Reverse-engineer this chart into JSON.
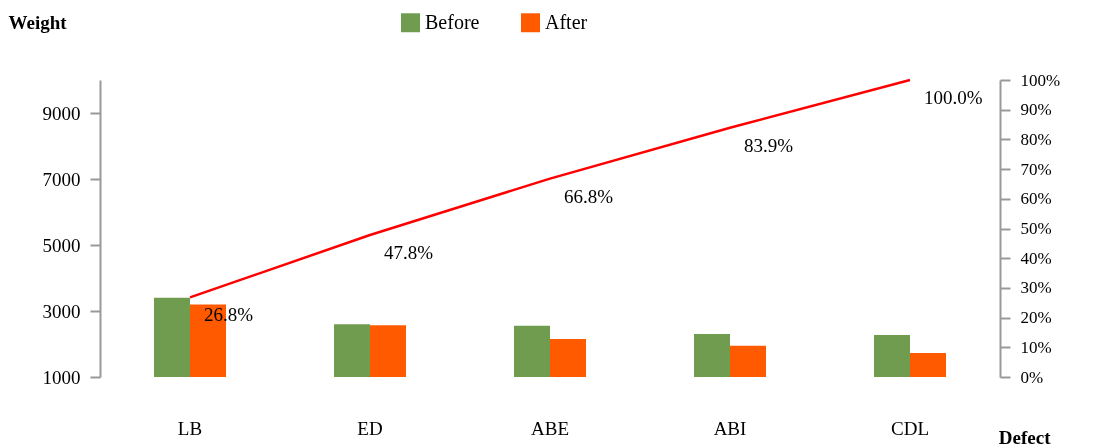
{
  "chart_data": {
    "type": "bar",
    "xlabel": "Defect",
    "ylabel": "Weight",
    "categories": [
      "LB",
      "ED",
      "ABE",
      "ABI",
      "CDL"
    ],
    "series": [
      {
        "name": "Before",
        "color": "#6f9c4f",
        "values": [
          3400,
          2600,
          2550,
          2300,
          2270
        ]
      },
      {
        "name": "After",
        "color": "#ff5a00",
        "values": [
          3200,
          2570,
          2150,
          1950,
          1730
        ]
      },
      {
        "type": "line",
        "axis": "y2",
        "color": "#ff0000",
        "values": [
          26.8,
          47.8,
          66.8,
          83.9,
          100
        ],
        "value_labels": [
          "26.8%",
          "47.8%",
          "66.8%",
          "83.9%",
          "100.0%"
        ]
      }
    ],
    "ylim": [
      1000,
      10000
    ],
    "yticks": [
      1000,
      3000,
      5000,
      7000,
      9000
    ],
    "y2lim": [
      0,
      100
    ],
    "y2ticks": [
      {
        "value": 0,
        "label": "0%"
      },
      {
        "value": 10,
        "label": "10%"
      },
      {
        "value": 20,
        "label": "20%"
      },
      {
        "value": 30,
        "label": "30%"
      },
      {
        "value": 40,
        "label": "40%"
      },
      {
        "value": 50,
        "label": "50%"
      },
      {
        "value": 60,
        "label": "60%"
      },
      {
        "value": 70,
        "label": "70%"
      },
      {
        "value": 80,
        "label": "80%"
      },
      {
        "value": 90,
        "label": "90%"
      },
      {
        "value": 100,
        "label": "100%"
      }
    ],
    "legend": "top",
    "grid": false
  }
}
